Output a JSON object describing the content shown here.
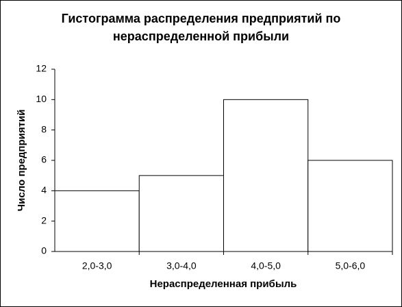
{
  "chart_data": {
    "type": "bar",
    "title": "Гистограмма распределения предприятий по нераспределенной прибыли",
    "x_label": "Нераспределенная прибыль",
    "y_label": "Число предприятий",
    "categories": [
      "2,0-3,0",
      "3,0-4,0",
      "4,0-5,0",
      "5,0-6,0"
    ],
    "values": [
      4,
      5,
      10,
      6
    ],
    "color": "#ffffff",
    "ylim": [
      0,
      12
    ],
    "yticks": [
      0,
      2,
      4,
      6,
      8,
      10,
      12
    ],
    "grid": false
  }
}
